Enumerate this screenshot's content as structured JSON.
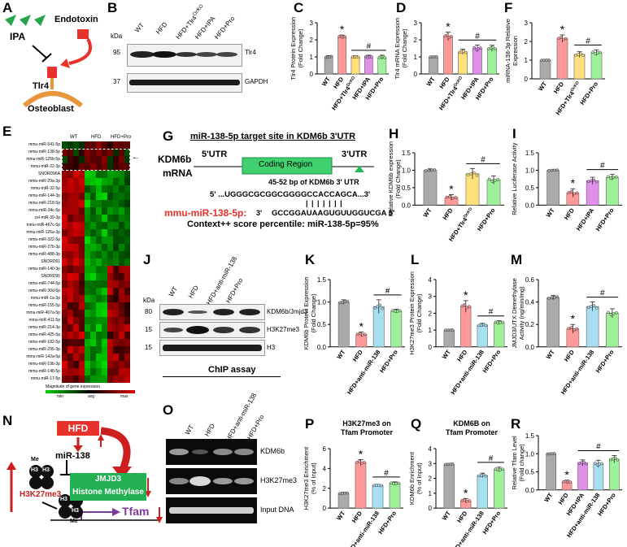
{
  "panel_letters": [
    "A",
    "B",
    "C",
    "D",
    "F",
    "E",
    "G",
    "H",
    "I",
    "J",
    "K",
    "L",
    "M",
    "N",
    "O",
    "P",
    "Q",
    "R"
  ],
  "panelA": {
    "ipa": "IPA",
    "endotoxin": "Endotoxin",
    "receptor": "Tlr4",
    "cell": "Osteoblast"
  },
  "panelB": {
    "kda": "kDa",
    "lanes": [
      "WT",
      "HFD",
      "HFD+Tlr4",
      "HFD+IPA",
      "HFD+Pro"
    ],
    "superscript": "OcKO",
    "bands": [
      {
        "mw": "95",
        "name": "Tlr4"
      },
      {
        "mw": "37",
        "name": "GAPDH"
      }
    ]
  },
  "panelE": {
    "groups": [
      "WT",
      "HFD",
      "HFD+Pro"
    ],
    "mirnas": [
      "mmu-miR-541-5p",
      "mmu-miR-138-5p",
      "mmu-miR-125b-5p",
      "mmu-miR-22-3p",
      "SNORD96A",
      "mmu-miR-29a-3p",
      "mmu-miR-32-5p",
      "mmu-miR-144-3p",
      "mmu-miR-218-5p",
      "mmu-miR-34c-5p",
      "cel-miR-39-3p",
      "mmu-miR-467c-5p",
      "mmu-miR-126a-3p",
      "mmu-miR-322-5p",
      "mmu-miR-27b-3p",
      "mmu-miR-488-3p",
      "SNORD61",
      "mmu-miR-140-3p",
      "SNORD95",
      "mmu-miR-744-5p",
      "mmu-miR-30d-5p",
      "mmu-miR-1a-3p",
      "mmu-miR-155-5p",
      "mmu-miR-467a-5p",
      "mmu-miR-411-5p",
      "mmu-miR-214-3p",
      "mmu-miR-425-5p",
      "mmu-miR-182-5p",
      "mmu-miR-295-3p",
      "mmu-miR-142a-5p",
      "mmu-miR-19b-3p",
      "mmu-miR-148-5p",
      "mmu-miR-17-5p"
    ],
    "scale_title": "Magnitude of gene expression",
    "scale_labels": [
      "min",
      "avg",
      "max"
    ],
    "colors": {
      "low": "#00d000",
      "mid": "#000000",
      "high": "#e00000"
    }
  },
  "panelG": {
    "title": "miR-138-5p target site in KDM6b 3'UTR",
    "gene": "KDM6b",
    "mrna": "mRNA",
    "utr5": "5'UTR",
    "coding": "Coding Region",
    "utr3": "3'UTR",
    "bp_note": "45-52 bp of KDM6b 3' UTR",
    "seq_top_prefix": "5'  ...UGGGCGCGGCGGGGCCACCAGCA...",
    "seq_top_prime": "3'",
    "mir_name": "mmu-miR-138-5p:",
    "mir_prime": "3'",
    "seq_bottom": "GCCGGAUAAGUGUUGGUCGA",
    "seq_bottom_prime": "5'",
    "context": "Context++ score percentile: miR-138-5p=95%",
    "utr_color": "#22bb55"
  },
  "panelJ": {
    "kda": "kDa",
    "lanes": [
      "WT",
      "HFD",
      "HFD+anti-miR-138",
      "HFD+Pro"
    ],
    "bands": [
      {
        "mw": "80",
        "name": "KDM6b/Jmjd3"
      },
      {
        "mw": "15",
        "name": "H3K27me3"
      },
      {
        "mw": "15",
        "name": "H3"
      }
    ]
  },
  "panelO": {
    "header": "ChIP assay",
    "lanes": [
      "WT",
      "HFD",
      "HFD+anti-miR-138",
      "HFD+Pro"
    ],
    "bands": [
      "KDM6b",
      "H3K27me3",
      "Input DNA"
    ]
  },
  "panelN": {
    "hfd": "HFD",
    "mirna": "miR-138",
    "h3": "H3",
    "me": "Me",
    "h3k27": "H3K27me3",
    "jmjd3": "JMJD3",
    "hist": "Histone Methylase",
    "tfam": "Tfam",
    "colors": {
      "hfd": "#e8312a",
      "jmjd3": "#22b053",
      "tfam": "#7e3c98",
      "arrow": "#cc1f1f"
    }
  },
  "charts": [
    {
      "id": "C",
      "type": "bar",
      "ylabel": "Tlr4 Protein Expression\n(Fold Change)",
      "ylim": [
        0,
        3
      ],
      "yticks": [
        "0",
        "1",
        "2",
        "3"
      ],
      "categories": [
        "WT",
        "HFD",
        "HFD+Tlr4",
        "HFD+IPA",
        "HFD+Pro"
      ],
      "cat_sup": [
        "",
        "",
        "OcKO",
        "",
        ""
      ],
      "values": [
        1.0,
        2.18,
        1.0,
        1.0,
        0.98
      ],
      "errors": [
        0.08,
        0.1,
        0.07,
        0.1,
        0.12
      ],
      "colors": [
        "#aaaaaa",
        "#ff9999",
        "#ffe07a",
        "#e090e8",
        "#9ff09a"
      ],
      "star": 1,
      "hash": [
        2,
        4
      ]
    },
    {
      "id": "D",
      "type": "bar",
      "ylabel": "Tlr4 mRNA Expression\n(Fold Change)",
      "ylim": [
        0,
        3
      ],
      "yticks": [
        "0",
        "1",
        "2",
        "3"
      ],
      "categories": [
        "WT",
        "HFD",
        "HFD+Tlr4",
        "HFD+IPA",
        "HFD+Pro"
      ],
      "cat_sup": [
        "",
        "",
        "OcKO",
        "",
        ""
      ],
      "values": [
        1.0,
        2.2,
        1.3,
        1.5,
        1.5
      ],
      "errors": [
        0.05,
        0.25,
        0.15,
        0.2,
        0.18
      ],
      "colors": [
        "#aaaaaa",
        "#ff9999",
        "#ffe07a",
        "#e090e8",
        "#9ff09a"
      ],
      "star": 1,
      "hash": [
        2,
        4
      ]
    },
    {
      "id": "F",
      "type": "bar",
      "ylabel": "miRNA-138-3p Relative\nExpression",
      "ylim": [
        0,
        3
      ],
      "yticks": [
        "0",
        "1",
        "2",
        "3"
      ],
      "categories": [
        "WT",
        "HFD",
        "HFD+Tlr4",
        "HFD+Pro"
      ],
      "cat_sup": [
        "",
        "",
        "OcKO",
        ""
      ],
      "values": [
        1.0,
        2.15,
        1.3,
        1.4
      ],
      "errors": [
        0.02,
        0.2,
        0.15,
        0.15
      ],
      "colors": [
        "#aaaaaa",
        "#ff9999",
        "#ffe07a",
        "#9ff09a"
      ],
      "star": 1,
      "hash": [
        2,
        3
      ]
    },
    {
      "id": "H",
      "type": "bar",
      "ylabel": "Relative KDM6b expression\n(Fold Change)",
      "ylim": [
        0,
        1.5
      ],
      "yticks": [
        "0.0",
        "0.5",
        "1.0",
        "1.5"
      ],
      "categories": [
        "WT",
        "HFD",
        "HFD+Tlr4",
        "HFD+Pro"
      ],
      "cat_sup": [
        "",
        "",
        "OcKO",
        ""
      ],
      "values": [
        1.0,
        0.22,
        0.9,
        0.72
      ],
      "errors": [
        0.04,
        0.08,
        0.15,
        0.12
      ],
      "colors": [
        "#aaaaaa",
        "#ff9999",
        "#ffe07a",
        "#9ff09a"
      ],
      "star": 1,
      "hash": [
        2,
        3
      ]
    },
    {
      "id": "I",
      "type": "bar",
      "ylabel": "Relative Luciferase Activity",
      "ylim": [
        0,
        1.5
      ],
      "yticks": [
        "0.0",
        "0.5",
        "1.0",
        "1.5"
      ],
      "categories": [
        "WT",
        "HFD",
        "HFD+IPA",
        "HFD+Pro"
      ],
      "cat_sup": [
        "",
        "",
        "",
        ""
      ],
      "values": [
        1.0,
        0.35,
        0.7,
        0.8
      ],
      "errors": [
        0.02,
        0.12,
        0.1,
        0.08
      ],
      "colors": [
        "#aaaaaa",
        "#ff9999",
        "#e090e8",
        "#9ff09a"
      ],
      "star": 1,
      "hash": [
        2,
        3
      ]
    },
    {
      "id": "K",
      "type": "bar",
      "ylabel": "KDM6b Protein Expression\n(Fold Change)",
      "ylim": [
        0,
        1.5
      ],
      "yticks": [
        "0.0",
        "0.5",
        "1.0",
        "1.5"
      ],
      "categories": [
        "WT",
        "HFD",
        "HFD+anti-miR-138",
        "HFD+Pro"
      ],
      "cat_sup": [
        "",
        "",
        "",
        ""
      ],
      "values": [
        1.0,
        0.28,
        0.9,
        0.8
      ],
      "errors": [
        0.05,
        0.05,
        0.15,
        0.04
      ],
      "colors": [
        "#aaaaaa",
        "#ff9999",
        "#a8dff0",
        "#9ff09a"
      ],
      "star": 1,
      "hash": [
        2,
        3
      ]
    },
    {
      "id": "L",
      "type": "bar",
      "ylabel": "H3K27me3 Protein Expression\n(Fold Change)",
      "ylim": [
        0,
        4
      ],
      "yticks": [
        "0",
        "1",
        "2",
        "3",
        "4"
      ],
      "categories": [
        "WT",
        "HFD",
        "HFD+anti-miR-138",
        "HFD+Pro"
      ],
      "cat_sup": [
        "",
        "",
        "",
        ""
      ],
      "values": [
        1.0,
        2.4,
        1.3,
        1.45
      ],
      "errors": [
        0.02,
        0.35,
        0.1,
        0.1
      ],
      "colors": [
        "#aaaaaa",
        "#ff9999",
        "#a8dff0",
        "#9ff09a"
      ],
      "star": 1,
      "hash": [
        2,
        3
      ]
    },
    {
      "id": "M",
      "type": "bar",
      "ylabel": "JMJD3/UTX Demethylase\nActivity (ng/min/mg)",
      "ylim": [
        0,
        0.6
      ],
      "yticks": [
        "0.0",
        "0.2",
        "0.4",
        "0.6"
      ],
      "categories": [
        "WT",
        "HFD",
        "HFD+anti-miR-138",
        "HFD+Pro"
      ],
      "cat_sup": [
        "",
        "",
        "",
        ""
      ],
      "values": [
        0.44,
        0.16,
        0.36,
        0.3
      ],
      "errors": [
        0.02,
        0.04,
        0.04,
        0.04
      ],
      "colors": [
        "#aaaaaa",
        "#ff9999",
        "#a8dff0",
        "#9ff09a"
      ],
      "star": 1,
      "hash": [
        2,
        3
      ]
    },
    {
      "id": "P",
      "type": "bar",
      "title": "H3K27me3 on\nTfam Promoter",
      "ylabel": "H3K27me3 Enrichment\n(% of Input)",
      "ylim": [
        0,
        6
      ],
      "yticks": [
        "0",
        "2",
        "4",
        "6"
      ],
      "categories": [
        "WT",
        "HFD",
        "HFD+anti-miR-138",
        "HFD+Pro"
      ],
      "cat_sup": [
        "",
        "",
        "",
        ""
      ],
      "values": [
        1.5,
        4.6,
        2.3,
        2.5
      ],
      "errors": [
        0.1,
        0.3,
        0.1,
        0.15
      ],
      "colors": [
        "#aaaaaa",
        "#ff9999",
        "#a8dff0",
        "#9ff09a"
      ],
      "star": 1,
      "hash": [
        2,
        3
      ]
    },
    {
      "id": "Q",
      "type": "bar",
      "title": "KDM6B on\nTfam Promoter",
      "ylabel": "KDM6b Enrichment\n(% of Input)",
      "ylim": [
        0,
        4
      ],
      "yticks": [
        "0",
        "1",
        "2",
        "3",
        "4"
      ],
      "categories": [
        "WT",
        "HFD",
        "HFD+anti-miR-138",
        "HFD+Pro"
      ],
      "cat_sup": [
        "",
        "",
        "",
        ""
      ],
      "values": [
        2.95,
        0.5,
        2.2,
        2.6
      ],
      "errors": [
        0.05,
        0.15,
        0.15,
        0.15
      ],
      "colors": [
        "#aaaaaa",
        "#ff9999",
        "#a8dff0",
        "#9ff09a"
      ],
      "star": 1,
      "hash": [
        2,
        3
      ]
    },
    {
      "id": "R",
      "type": "bar",
      "ylabel": "Relative Tfam Level\n(Fold change)",
      "ylim": [
        0,
        1.5
      ],
      "yticks": [
        "0.0",
        "0.5",
        "1.0",
        "1.5"
      ],
      "categories": [
        "WT",
        "HFD",
        "HFD+IPA",
        "HFD+anti-miR-138",
        "HFD+Pro"
      ],
      "cat_sup": [
        "",
        "",
        "",
        "",
        ""
      ],
      "values": [
        1.0,
        0.22,
        0.75,
        0.72,
        0.85
      ],
      "errors": [
        0.02,
        0.05,
        0.08,
        0.1,
        0.1
      ],
      "colors": [
        "#aaaaaa",
        "#ff9999",
        "#e090e8",
        "#a8dff0",
        "#9ff09a"
      ],
      "star": 1,
      "hash": [
        2,
        4
      ]
    }
  ],
  "star_symbol": "*",
  "hash_symbol": "#"
}
